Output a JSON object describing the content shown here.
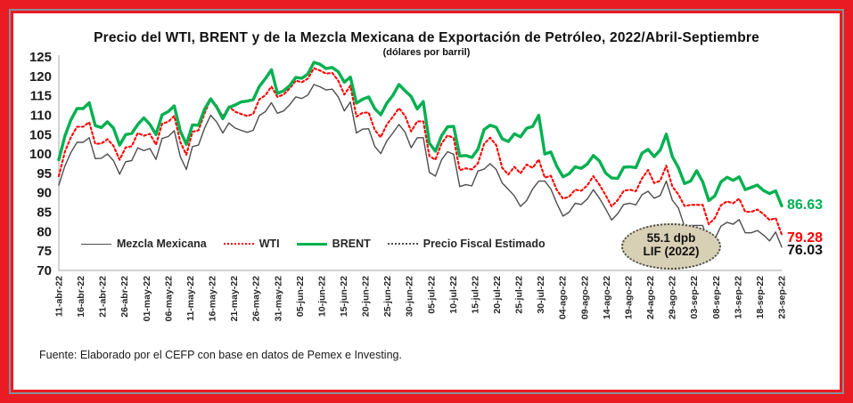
{
  "frame": {
    "outer_color": "#EA1B22",
    "pinstripe_color": "#85909a"
  },
  "header": {
    "title": "Precio del WTI, BRENT y de la Mezcla Mexicana de Exportación de Petróleo, 2022/Abril-Septiembre",
    "subtitle": "(dólares por barril)"
  },
  "footer": {
    "source": "Fuente: Elaborado por el CEFP con base en datos de Pemex e Investing."
  },
  "legend": {
    "items": [
      {
        "label": "Mezcla Mexicana",
        "style": "solid-thin",
        "color": "#4d4d4d"
      },
      {
        "label": "WTI",
        "style": "dotted",
        "color": "#ff0000"
      },
      {
        "label": "BRENT",
        "style": "solid-thick",
        "color": "#00B050"
      },
      {
        "label": "Precio Fiscal Estimado",
        "style": "dotted",
        "color": "#4d4d4d"
      }
    ]
  },
  "annotation": {
    "line1": "55.1 dpb",
    "line2": "LIF (2022)",
    "fill": "#d8d0b5"
  },
  "end_labels": [
    {
      "text": "86.63",
      "series": "BRENT",
      "color": "#00B050",
      "value": 86.63
    },
    {
      "text": "79.28",
      "series": "WTI",
      "color": "#ff0000",
      "value": 79.28
    },
    {
      "text": "76.03",
      "series": "Mezcla Mexicana",
      "color": "#111111",
      "value": 76.03
    }
  ],
  "chart_data": {
    "type": "line",
    "title": "Precio del WTI, BRENT y de la Mezcla Mexicana de Exportación de Petróleo, 2022/Abril-Septiembre",
    "subtitle": "(dólares por barril)",
    "xlabel": "",
    "ylabel": "",
    "ylim": [
      70,
      125
    ],
    "ytick_step": 5,
    "grid": false,
    "legend_position": "inside-bottom-left",
    "x_frequency": "daily (business days), 11-abr-22 to 23-sep-22",
    "x_tick_labels": [
      "11-abr-22",
      "16-abr-22",
      "21-abr-22",
      "26-abr-22",
      "01-may-22",
      "06-may-22",
      "11-may-22",
      "16-may-22",
      "21-may-22",
      "26-may-22",
      "31-may-22",
      "05-jun-22",
      "10-jun-22",
      "15-jun-22",
      "20-jun-22",
      "25-jun-22",
      "30-jun-22",
      "05-jul-22",
      "10-jul-22",
      "15-jul-22",
      "20-jul-22",
      "25-jul-22",
      "30-jul-22",
      "04-ago-22",
      "09-ago-22",
      "14-ago-22",
      "19-ago-22",
      "24-ago-22",
      "29-ago-22",
      "03-sep-22",
      "08-sep-22",
      "13-sep-22",
      "18-sep-22",
      "23-sep-22"
    ],
    "series": [
      {
        "name": "Mezcla Mexicana",
        "style": "solid-thin",
        "color": "#4d4d4d",
        "end_value": 76.03,
        "values": [
          92.0,
          96.9,
          100.4,
          103.0,
          103.0,
          104.2,
          98.8,
          98.9,
          100.0,
          98.3,
          94.8,
          98.0,
          98.3,
          101.6,
          100.9,
          101.4,
          98.6,
          104.0,
          104.5,
          106.0,
          99.3,
          96.0,
          101.9,
          102.3,
          106.7,
          110.0,
          108.2,
          105.4,
          108.0,
          106.7,
          106.1,
          105.6,
          106.1,
          109.9,
          110.9,
          113.2,
          110.5,
          111.1,
          112.7,
          114.7,
          114.3,
          115.2,
          117.9,
          117.3,
          116.5,
          116.7,
          114.7,
          111.1,
          113.4,
          105.4,
          106.4,
          106.5,
          102.0,
          100.1,
          103.4,
          105.4,
          107.6,
          105.6,
          101.6,
          104.2,
          104.2,
          95.3,
          94.3,
          98.5,
          100.6,
          99.9,
          91.6,
          92.1,
          91.8,
          95.6,
          96.1,
          97.5,
          96.0,
          92.5,
          90.9,
          89.2,
          86.5,
          88.0,
          91.0,
          93.0,
          93.0,
          91.0,
          87.2,
          84.0,
          85.0,
          87.3,
          87.0,
          88.4,
          90.8,
          88.6,
          85.9,
          83.0,
          84.6,
          87.0,
          87.3,
          86.9,
          89.5,
          90.4,
          88.6,
          89.3,
          93.0,
          88.1,
          86.1,
          81.3,
          81.6,
          81.6,
          81.6,
          76.5,
          78.1,
          81.4,
          82.4,
          81.9,
          83.1,
          79.7,
          79.7,
          80.3,
          79.1,
          77.6,
          79.9,
          76.03
        ]
      },
      {
        "name": "WTI",
        "style": "dotted",
        "color": "#ff0000",
        "end_value": 79.28,
        "values": [
          94.3,
          100.6,
          104.3,
          107.0,
          107.0,
          108.2,
          102.6,
          102.7,
          103.8,
          102.1,
          98.5,
          101.7,
          102.0,
          105.4,
          104.7,
          105.2,
          102.4,
          107.8,
          108.3,
          109.8,
          103.1,
          99.8,
          105.7,
          106.1,
          110.5,
          114.2,
          112.4,
          109.6,
          112.2,
          110.9,
          110.3,
          109.8,
          110.3,
          114.1,
          115.1,
          117.4,
          114.7,
          115.3,
          116.9,
          118.9,
          118.5,
          119.4,
          122.1,
          121.5,
          120.7,
          120.9,
          118.9,
          115.3,
          117.6,
          109.6,
          110.6,
          110.7,
          106.2,
          104.3,
          107.6,
          109.6,
          111.8,
          109.8,
          105.8,
          108.4,
          108.4,
          99.5,
          98.5,
          102.7,
          104.8,
          104.1,
          95.8,
          96.3,
          96.0,
          97.6,
          102.6,
          104.2,
          102.3,
          96.4,
          94.7,
          96.7,
          95.0,
          97.3,
          96.4,
          98.6,
          93.9,
          94.4,
          90.7,
          88.5,
          89.0,
          90.8,
          90.5,
          91.9,
          94.3,
          92.1,
          89.4,
          86.5,
          88.1,
          90.5,
          90.8,
          90.4,
          93.7,
          95.9,
          92.5,
          93.1,
          97.0,
          91.6,
          89.6,
          86.6,
          86.9,
          86.9,
          86.9,
          81.9,
          83.5,
          86.8,
          87.8,
          87.3,
          88.5,
          85.1,
          85.1,
          85.7,
          84.5,
          83.0,
          83.5,
          79.28
        ]
      },
      {
        "name": "BRENT",
        "style": "solid-thick",
        "color": "#00B050",
        "end_value": 86.63,
        "values": [
          98.5,
          104.6,
          108.8,
          111.7,
          111.7,
          113.2,
          107.3,
          106.8,
          108.3,
          106.7,
          102.3,
          105.0,
          105.3,
          107.6,
          109.3,
          107.6,
          105.0,
          110.1,
          110.9,
          112.4,
          105.9,
          102.5,
          107.5,
          107.4,
          111.6,
          114.2,
          112.0,
          109.1,
          112.0,
          112.6,
          113.4,
          113.6,
          114.0,
          117.4,
          119.4,
          121.7,
          115.6,
          116.3,
          117.6,
          119.7,
          119.5,
          120.6,
          123.6,
          123.1,
          122.0,
          122.3,
          121.2,
          118.5,
          119.8,
          113.1,
          114.1,
          114.7,
          111.7,
          110.1,
          113.1,
          115.1,
          117.9,
          116.3,
          114.8,
          111.6,
          113.5,
          102.8,
          100.7,
          104.7,
          107.0,
          107.1,
          99.5,
          99.6,
          99.1,
          101.2,
          106.3,
          107.4,
          106.9,
          103.9,
          103.2,
          105.2,
          104.4,
          106.6,
          107.1,
          110.0,
          100.0,
          100.5,
          96.8,
          94.1,
          94.9,
          96.7,
          96.3,
          97.4,
          99.6,
          98.2,
          95.1,
          93.8,
          93.7,
          96.6,
          96.7,
          96.5,
          100.2,
          101.2,
          99.3,
          101.0,
          105.1,
          99.3,
          96.5,
          92.4,
          93.0,
          95.7,
          92.8,
          88.0,
          89.2,
          92.8,
          94.0,
          93.2,
          94.1,
          90.8,
          91.4,
          92.0,
          90.6,
          89.8,
          90.5,
          86.63
        ]
      },
      {
        "name": "Precio Fiscal Estimado",
        "style": "dotted",
        "color": "#4d4d4d",
        "constant_value": 55.1,
        "visible_in_plot": false,
        "note": "55.1 dpb LIF (2022) — below y-axis range, shown as annotation",
        "values": []
      }
    ]
  }
}
